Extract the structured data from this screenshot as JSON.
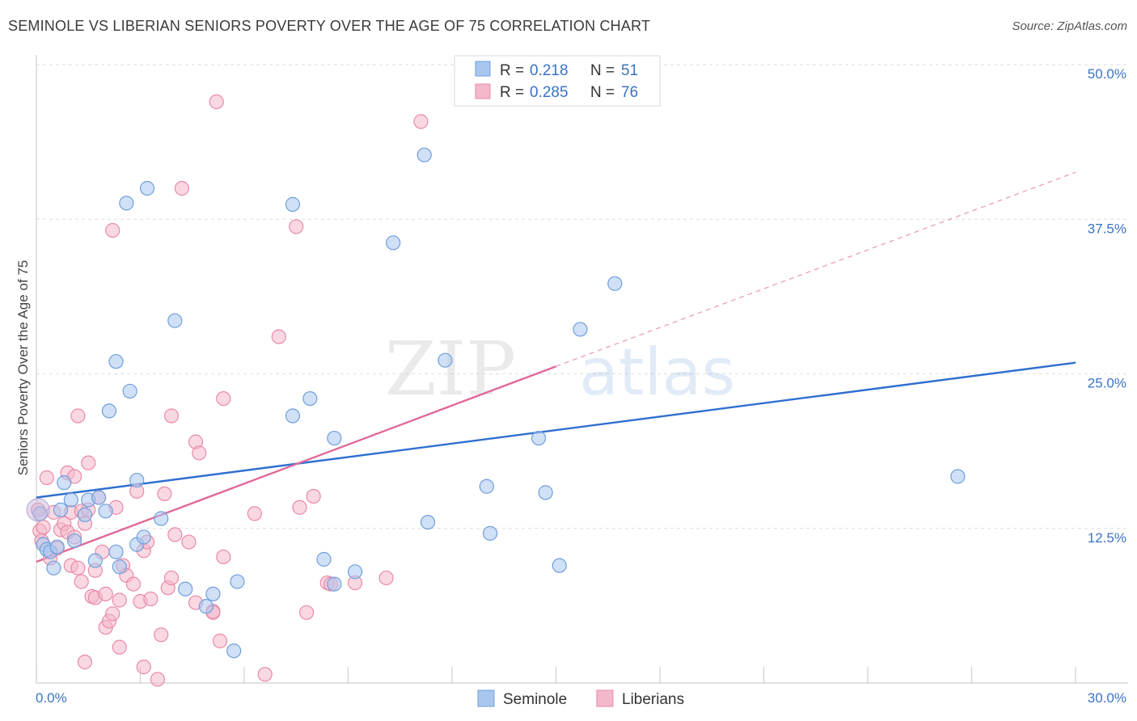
{
  "header": {
    "title": "SEMINOLE VS LIBERIAN SENIORS POVERTY OVER THE AGE OF 75 CORRELATION CHART",
    "source": "Source: ZipAtlas.com"
  },
  "watermark": {
    "zip": "ZIP",
    "atlas": "atlas"
  },
  "legend_box": {
    "rows": [
      {
        "r_label": "R =",
        "r_value": "0.218",
        "n_label": "N =",
        "n_value": "51",
        "color": "#a9c6ef"
      },
      {
        "r_label": "R =",
        "r_value": "0.285",
        "n_label": "N =",
        "n_value": "76",
        "color": "#f4b8cb"
      }
    ]
  },
  "bottom_legend": [
    {
      "label": "Seminole",
      "color": "#a9c6ef"
    },
    {
      "label": "Liberians",
      "color": "#f4b8cb"
    }
  ],
  "chart_data": {
    "type": "scatter",
    "ylabel": "Seniors Poverty Over the Age of 75",
    "xlim": [
      0,
      30
    ],
    "ylim": [
      0,
      50
    ],
    "x_tick_labels": [
      "0.0%",
      "30.0%"
    ],
    "y_ticks": [
      12.5,
      25.0,
      37.5,
      50.0
    ],
    "y_tick_labels": [
      "12.5%",
      "25.0%",
      "37.5%",
      "50.0%"
    ],
    "grid": true,
    "series": [
      {
        "name": "Seminole",
        "color": "#a9c6ef",
        "stroke": "#6f9fdc",
        "line_color": "#2f6fd0",
        "trend": {
          "x0": 0,
          "y0": 15.0,
          "x1": 30,
          "y1": 25.9
        },
        "points": [
          [
            0.1,
            13.7
          ],
          [
            0.2,
            11.2
          ],
          [
            0.3,
            10.8
          ],
          [
            0.4,
            10.6
          ],
          [
            0.5,
            9.3
          ],
          [
            0.6,
            11.0
          ],
          [
            0.7,
            14.0
          ],
          [
            0.8,
            16.2
          ],
          [
            1.0,
            14.8
          ],
          [
            1.1,
            11.5
          ],
          [
            1.4,
            13.6
          ],
          [
            1.5,
            14.8
          ],
          [
            1.7,
            9.9
          ],
          [
            1.8,
            15.0
          ],
          [
            2.0,
            13.9
          ],
          [
            2.1,
            22.0
          ],
          [
            2.3,
            10.6
          ],
          [
            2.3,
            26.0
          ],
          [
            2.4,
            9.4
          ],
          [
            2.6,
            38.8
          ],
          [
            2.7,
            23.6
          ],
          [
            2.9,
            16.4
          ],
          [
            2.9,
            11.2
          ],
          [
            3.1,
            11.8
          ],
          [
            3.2,
            40.0
          ],
          [
            3.6,
            13.3
          ],
          [
            4.0,
            29.3
          ],
          [
            4.3,
            7.6
          ],
          [
            4.9,
            6.2
          ],
          [
            5.1,
            7.2
          ],
          [
            5.8,
            8.2
          ],
          [
            5.7,
            2.6
          ],
          [
            7.4,
            38.7
          ],
          [
            7.4,
            21.6
          ],
          [
            7.9,
            23.0
          ],
          [
            8.3,
            10.0
          ],
          [
            8.6,
            19.8
          ],
          [
            8.6,
            8.0
          ],
          [
            9.2,
            9.0
          ],
          [
            10.3,
            35.6
          ],
          [
            11.2,
            42.7
          ],
          [
            11.3,
            13.0
          ],
          [
            11.8,
            26.1
          ],
          [
            13.0,
            15.9
          ],
          [
            13.1,
            12.1
          ],
          [
            14.5,
            19.8
          ],
          [
            14.7,
            15.4
          ],
          [
            15.1,
            9.5
          ],
          [
            15.7,
            28.6
          ],
          [
            16.7,
            32.3
          ],
          [
            26.6,
            16.7
          ]
        ]
      },
      {
        "name": "Liberians",
        "color": "#f4b8cb",
        "stroke": "#e98aa8",
        "line_color": "#e0699a",
        "trend": {
          "x0": 0,
          "y0": 9.8,
          "x1": 15.0,
          "y1": 25.6
        },
        "trend_ext": {
          "x0": 15.0,
          "y0": 25.6,
          "x1": 30,
          "y1": 41.3
        },
        "points": [
          [
            0.05,
            14.0
          ],
          [
            0.1,
            12.3
          ],
          [
            0.15,
            11.5
          ],
          [
            0.2,
            12.6
          ],
          [
            0.3,
            16.6
          ],
          [
            0.4,
            10.1
          ],
          [
            0.5,
            13.8
          ],
          [
            0.6,
            10.9
          ],
          [
            0.7,
            12.4
          ],
          [
            0.8,
            12.9
          ],
          [
            0.9,
            12.2
          ],
          [
            0.9,
            17.0
          ],
          [
            1.0,
            13.8
          ],
          [
            1.0,
            9.5
          ],
          [
            1.1,
            11.8
          ],
          [
            1.1,
            16.7
          ],
          [
            1.2,
            9.3
          ],
          [
            1.2,
            21.6
          ],
          [
            1.3,
            13.9
          ],
          [
            1.3,
            8.2
          ],
          [
            1.4,
            12.9
          ],
          [
            1.5,
            17.8
          ],
          [
            1.5,
            14.0
          ],
          [
            1.6,
            7.0
          ],
          [
            1.7,
            6.9
          ],
          [
            1.7,
            9.1
          ],
          [
            1.8,
            15.0
          ],
          [
            1.9,
            10.6
          ],
          [
            2.0,
            7.2
          ],
          [
            2.0,
            4.5
          ],
          [
            2.1,
            5.0
          ],
          [
            2.2,
            5.6
          ],
          [
            2.2,
            36.6
          ],
          [
            2.3,
            14.2
          ],
          [
            2.4,
            6.7
          ],
          [
            2.5,
            9.5
          ],
          [
            2.6,
            8.7
          ],
          [
            2.8,
            8.0
          ],
          [
            2.9,
            15.5
          ],
          [
            3.0,
            6.6
          ],
          [
            3.1,
            10.7
          ],
          [
            3.2,
            11.4
          ],
          [
            3.3,
            6.8
          ],
          [
            3.5,
            0.3
          ],
          [
            3.6,
            3.9
          ],
          [
            3.7,
            15.3
          ],
          [
            3.8,
            7.7
          ],
          [
            3.9,
            21.6
          ],
          [
            3.9,
            8.5
          ],
          [
            4.0,
            12.0
          ],
          [
            4.2,
            40.0
          ],
          [
            4.4,
            11.4
          ],
          [
            4.6,
            19.5
          ],
          [
            4.6,
            6.5
          ],
          [
            4.7,
            18.6
          ],
          [
            5.1,
            5.8
          ],
          [
            5.1,
            5.7
          ],
          [
            5.3,
            3.4
          ],
          [
            5.4,
            23.0
          ],
          [
            5.4,
            10.2
          ],
          [
            6.3,
            13.7
          ],
          [
            6.6,
            0.7
          ],
          [
            7.0,
            28.0
          ],
          [
            7.5,
            36.9
          ],
          [
            7.6,
            14.2
          ],
          [
            8.0,
            15.1
          ],
          [
            8.4,
            8.1
          ],
          [
            8.5,
            8.0
          ],
          [
            7.8,
            5.7
          ],
          [
            9.2,
            8.1
          ],
          [
            10.1,
            8.5
          ],
          [
            11.1,
            45.4
          ],
          [
            5.2,
            47.0
          ],
          [
            2.4,
            2.9
          ],
          [
            1.4,
            1.7
          ],
          [
            3.1,
            1.3
          ]
        ]
      }
    ]
  }
}
